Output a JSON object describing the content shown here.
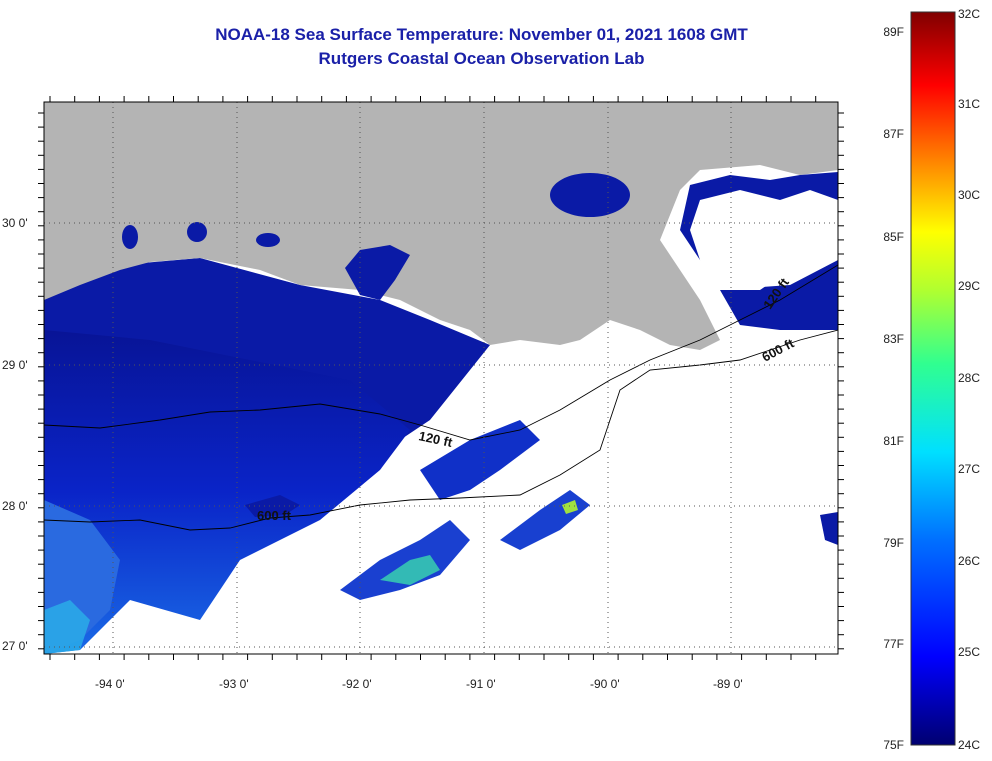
{
  "title": {
    "line1": "NOAA-18 Sea Surface Temperature:  November 01, 2021 1608 GMT",
    "line2": "Rutgers Coastal Ocean Observation Lab"
  },
  "map": {
    "lat_labels": [
      "30 0'",
      "29 0'",
      "28 0'",
      "27 0'"
    ],
    "lon_labels": [
      "-94 0'",
      "-93 0'",
      "-92 0'",
      "-91 0'",
      "-90 0'",
      "-89 0'"
    ],
    "contours": [
      {
        "label": "120 ft"
      },
      {
        "label": "600 ft"
      },
      {
        "label": "600 ft"
      },
      {
        "label": "120 ft"
      }
    ],
    "colors": {
      "land": "#b4b4b4",
      "cloud": "#ffffff",
      "sst_cold": "#0b16a0",
      "sst_mid": "#1a4ee6",
      "sst_warm": "#20c8e0"
    }
  },
  "colorbar": {
    "f_labels": [
      "89F",
      "87F",
      "85F",
      "83F",
      "81F",
      "79F",
      "77F",
      "75F"
    ],
    "c_labels": [
      "32C",
      "31C",
      "30C",
      "29C",
      "28C",
      "27C",
      "26C",
      "25C",
      "24C"
    ],
    "colors": [
      "#000080",
      "#0000ff",
      "#0080ff",
      "#00ffff",
      "#80ff80",
      "#ffff00",
      "#ff8000",
      "#ff0000",
      "#800000"
    ]
  }
}
